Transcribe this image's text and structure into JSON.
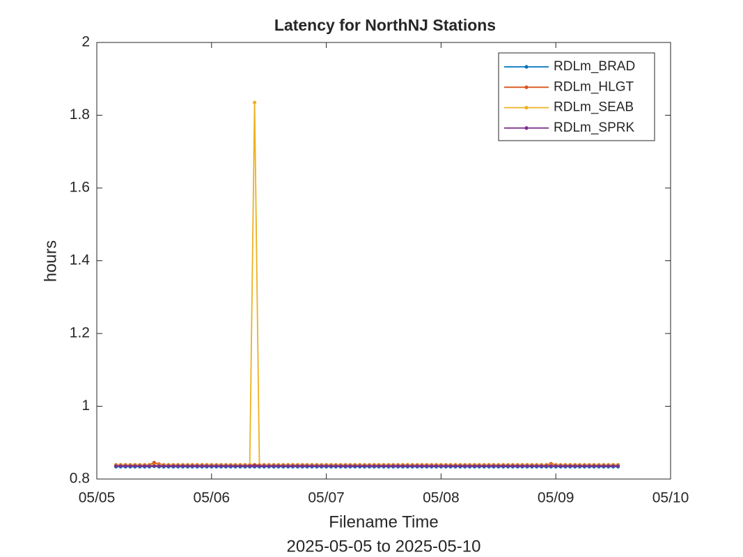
{
  "chart_data": {
    "type": "line",
    "title": "Latency for NorthNJ Stations",
    "xlabel": [
      "Filename Time",
      "2025-05-05 to 2025-05-10"
    ],
    "ylabel": "hours",
    "x": [
      0.167,
      0.208,
      0.25,
      0.292,
      0.333,
      0.375,
      0.417,
      0.458,
      0.5,
      0.542,
      0.583,
      0.625,
      0.667,
      0.708,
      0.75,
      0.792,
      0.833,
      0.875,
      0.917,
      0.958,
      1,
      1.042,
      1.083,
      1.125,
      1.167,
      1.208,
      1.25,
      1.292,
      1.333,
      1.375,
      1.417,
      1.458,
      1.5,
      1.542,
      1.583,
      1.625,
      1.667,
      1.708,
      1.75,
      1.792,
      1.833,
      1.875,
      1.917,
      1.958,
      2,
      2.042,
      2.083,
      2.125,
      2.167,
      2.208,
      2.25,
      2.292,
      2.333,
      2.375,
      2.417,
      2.458,
      2.5,
      2.542,
      2.583,
      2.625,
      2.667,
      2.708,
      2.75,
      2.792,
      2.833,
      2.875,
      2.917,
      2.958,
      3,
      3.042,
      3.083,
      3.125,
      3.167,
      3.208,
      3.25,
      3.292,
      3.333,
      3.375,
      3.417,
      3.458,
      3.5,
      3.542,
      3.583,
      3.625,
      3.667,
      3.708,
      3.75,
      3.792,
      3.833,
      3.875,
      3.917,
      3.958,
      4,
      4.042,
      4.083,
      4.125,
      4.167,
      4.208,
      4.25,
      4.292,
      4.333,
      4.375,
      4.417,
      4.458,
      4.5,
      4.542
    ],
    "series": [
      {
        "name": "RDLm_BRAD",
        "color": "#0072bd",
        "values": [
          0.834,
          0.834,
          0.834,
          0.834,
          0.834,
          0.834,
          0.834,
          0.834,
          0.835,
          0.834,
          0.834,
          0.834,
          0.834,
          0.834,
          0.834,
          0.834,
          0.834,
          0.834,
          0.834,
          0.834,
          0.834,
          0.834,
          0.834,
          0.834,
          0.834,
          0.834,
          0.834,
          0.834,
          0.834,
          0.834,
          0.834,
          0.834,
          0.834,
          0.834,
          0.834,
          0.834,
          0.834,
          0.834,
          0.834,
          0.834,
          0.834,
          0.834,
          0.834,
          0.834,
          0.834,
          0.834,
          0.834,
          0.834,
          0.834,
          0.834,
          0.834,
          0.834,
          0.834,
          0.834,
          0.834,
          0.834,
          0.834,
          0.834,
          0.834,
          0.834,
          0.834,
          0.834,
          0.834,
          0.834,
          0.834,
          0.834,
          0.834,
          0.834,
          0.834,
          0.834,
          0.834,
          0.834,
          0.834,
          0.834,
          0.834,
          0.834,
          0.834,
          0.834,
          0.834,
          0.834,
          0.834,
          0.834,
          0.834,
          0.834,
          0.834,
          0.834,
          0.834,
          0.834,
          0.834,
          0.834,
          0.834,
          0.834,
          0.834,
          0.834,
          0.834,
          0.834,
          0.834,
          0.834,
          0.834,
          0.834,
          0.834,
          0.834,
          0.834,
          0.834,
          0.834,
          0.834
        ]
      },
      {
        "name": "RDLm_HLGT",
        "color": "#d95319",
        "values": [
          0.839,
          0.839,
          0.839,
          0.839,
          0.839,
          0.839,
          0.839,
          0.839,
          0.845,
          0.841,
          0.839,
          0.839,
          0.839,
          0.839,
          0.839,
          0.839,
          0.839,
          0.839,
          0.839,
          0.839,
          0.839,
          0.839,
          0.839,
          0.839,
          0.839,
          0.839,
          0.839,
          0.839,
          0.839,
          0.839,
          0.839,
          0.839,
          0.839,
          0.839,
          0.839,
          0.839,
          0.839,
          0.839,
          0.839,
          0.839,
          0.839,
          0.839,
          0.839,
          0.839,
          0.839,
          0.839,
          0.839,
          0.839,
          0.839,
          0.839,
          0.839,
          0.839,
          0.839,
          0.839,
          0.839,
          0.839,
          0.839,
          0.839,
          0.839,
          0.839,
          0.839,
          0.839,
          0.839,
          0.839,
          0.839,
          0.839,
          0.839,
          0.839,
          0.839,
          0.839,
          0.839,
          0.839,
          0.839,
          0.839,
          0.839,
          0.839,
          0.839,
          0.839,
          0.839,
          0.839,
          0.839,
          0.839,
          0.839,
          0.839,
          0.839,
          0.839,
          0.839,
          0.839,
          0.839,
          0.839,
          0.839,
          0.842,
          0.839,
          0.839,
          0.839,
          0.839,
          0.839,
          0.839,
          0.839,
          0.839,
          0.839,
          0.839,
          0.839,
          0.839,
          0.839,
          0.839
        ]
      },
      {
        "name": "RDLm_SEAB",
        "color": "#edb120",
        "values": [
          0.838,
          0.838,
          0.838,
          0.838,
          0.838,
          0.838,
          0.838,
          0.838,
          0.838,
          0.838,
          0.838,
          0.838,
          0.838,
          0.838,
          0.838,
          0.838,
          0.838,
          0.838,
          0.838,
          0.838,
          0.838,
          0.838,
          0.838,
          0.838,
          0.838,
          0.838,
          0.838,
          0.838,
          0.838,
          1.835,
          0.838,
          0.838,
          0.838,
          0.838,
          0.838,
          0.838,
          0.838,
          0.838,
          0.838,
          0.838,
          0.838,
          0.838,
          0.838,
          0.838,
          0.838,
          0.838,
          0.838,
          0.838,
          0.838,
          0.838,
          0.838,
          0.838,
          0.838,
          0.838,
          0.838,
          0.838,
          0.838,
          0.838,
          0.838,
          0.838,
          0.838,
          0.838,
          0.838,
          0.838,
          0.838,
          0.838,
          0.838,
          0.838,
          0.838,
          0.838,
          0.838,
          0.838,
          0.838,
          0.838,
          0.838,
          0.838,
          0.838,
          0.838,
          0.838,
          0.838,
          0.838,
          0.838,
          0.838,
          0.838,
          0.838,
          0.838,
          0.838,
          0.838,
          0.838,
          0.838,
          0.838,
          0.838,
          0.838,
          0.838,
          0.838,
          0.838,
          0.838,
          0.838,
          0.838,
          0.838,
          0.838,
          0.838,
          0.838,
          0.838,
          0.838,
          0.838
        ]
      },
      {
        "name": "RDLm_SPRK",
        "color": "#7e2f8e",
        "values": [
          0.836,
          0.836,
          0.836,
          0.836,
          0.836,
          0.836,
          0.836,
          0.836,
          0.836,
          0.836,
          0.836,
          0.836,
          0.836,
          0.836,
          0.836,
          0.836,
          0.836,
          0.836,
          0.836,
          0.836,
          0.836,
          0.836,
          0.836,
          0.836,
          0.836,
          0.836,
          0.836,
          0.836,
          0.836,
          0.836,
          0.836,
          0.836,
          0.836,
          0.836,
          0.836,
          0.836,
          0.836,
          0.836,
          0.836,
          0.836,
          0.836,
          0.836,
          0.836,
          0.836,
          0.836,
          0.836,
          0.836,
          0.836,
          0.836,
          0.836,
          0.836,
          0.836,
          0.836,
          0.836,
          0.836,
          0.836,
          0.836,
          0.836,
          0.836,
          0.836,
          0.836,
          0.836,
          0.836,
          0.836,
          0.836,
          0.836,
          0.836,
          0.836,
          0.836,
          0.836,
          0.836,
          0.836,
          0.836,
          0.836,
          0.836,
          0.836,
          0.836,
          0.836,
          0.836,
          0.836,
          0.836,
          0.836,
          0.836,
          0.836,
          0.836,
          0.836,
          0.836,
          0.836,
          0.836,
          0.836,
          0.836,
          0.836,
          0.836,
          0.836,
          0.836,
          0.836,
          0.836,
          0.836,
          0.836,
          0.836,
          0.836,
          0.836,
          0.836,
          0.836,
          0.836,
          0.836
        ]
      }
    ],
    "xlim": [
      0,
      5
    ],
    "xticks": [
      {
        "value": 0,
        "label": "05/05"
      },
      {
        "value": 1,
        "label": "05/06"
      },
      {
        "value": 2,
        "label": "05/07"
      },
      {
        "value": 3,
        "label": "05/08"
      },
      {
        "value": 4,
        "label": "05/09"
      },
      {
        "value": 5,
        "label": "05/10"
      }
    ],
    "ylim": [
      0.8,
      2
    ],
    "yticks": [
      0.8,
      1,
      1.2,
      1.4,
      1.6,
      1.8,
      2
    ],
    "grid": false,
    "legend": "northeast",
    "markers": true
  }
}
